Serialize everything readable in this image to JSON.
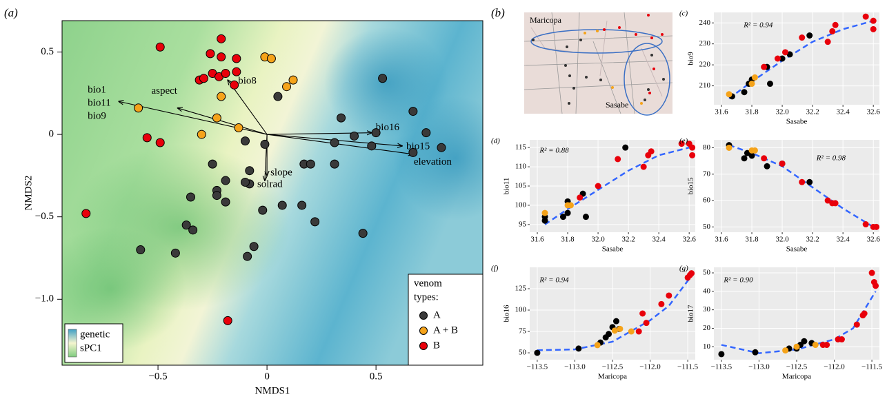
{
  "chart_data": [
    {
      "type": "scatter",
      "panel": "(a)",
      "xlabel": "NMDS1",
      "ylabel": "NMDS2",
      "xlim": [
        -0.94,
        0.99
      ],
      "ylim": [
        -1.4,
        0.69
      ],
      "xticks": [
        {
          "value": -0.5,
          "label": "−0.5"
        },
        0,
        0.5
      ],
      "yticks": [
        {
          "value": -1,
          "label": "−1.0"
        },
        {
          "value": -0.5,
          "label": "−0.5"
        },
        0,
        0.5
      ],
      "grid": false,
      "edgecolor": "#000000",
      "legend": "lower right",
      "legend_title": [
        "venom",
        "types:"
      ],
      "colorbar_labels": [
        "genetic",
        "sPC1"
      ],
      "series": [
        {
          "name": "A",
          "color": "#3a3a3a",
          "x": [
            0.53,
            0.05,
            0.67,
            0.34,
            0.73,
            0.4,
            0.5,
            0.8,
            0.67,
            0.48,
            0.31,
            -0.1,
            -0.01,
            0.31,
            0.17,
            0.2,
            -0.25,
            -0.19,
            -0.08,
            -0.08,
            -0.1,
            -0.23,
            -0.23,
            -0.19,
            -0.35,
            0.07,
            0.16,
            -0.02,
            0.22,
            -0.37,
            -0.34,
            0.44,
            -0.06,
            -0.58,
            -0.42,
            -0.09
          ],
          "values": [
            0.34,
            0.23,
            0.14,
            0.1,
            0.01,
            -0.01,
            0.01,
            -0.08,
            -0.11,
            -0.07,
            -0.05,
            -0.04,
            -0.06,
            -0.18,
            -0.18,
            -0.18,
            -0.18,
            -0.28,
            -0.22,
            -0.3,
            -0.29,
            -0.34,
            -0.37,
            -0.41,
            -0.38,
            -0.43,
            -0.43,
            -0.46,
            -0.53,
            -0.55,
            -0.58,
            -0.6,
            -0.68,
            -0.7,
            -0.72,
            -0.74
          ]
        },
        {
          "name": "A + B",
          "color": "#f5a31a",
          "x": [
            -0.01,
            0.02,
            0.12,
            0.09,
            -0.21,
            -0.59,
            -0.23,
            -0.13,
            -0.3
          ],
          "values": [
            0.47,
            0.46,
            0.33,
            0.29,
            0.23,
            0.16,
            0.1,
            0.04,
            0.0
          ]
        },
        {
          "name": "B",
          "color": "#e8000b",
          "x": [
            -0.21,
            -0.49,
            -0.26,
            -0.21,
            -0.14,
            -0.25,
            -0.22,
            -0.19,
            -0.14,
            -0.31,
            -0.29,
            -0.15,
            -0.55,
            -0.49,
            -0.83,
            -0.18
          ],
          "values": [
            0.58,
            0.53,
            0.49,
            0.47,
            0.46,
            0.37,
            0.35,
            0.37,
            0.38,
            0.33,
            0.34,
            0.3,
            -0.02,
            -0.05,
            -0.48,
            -1.13
          ]
        }
      ],
      "vectors": [
        {
          "labels": [
            "bio1",
            "bio11",
            "bio9"
          ],
          "x": -0.68,
          "y": 0.2
        },
        {
          "labels": [
            "aspect"
          ],
          "x": -0.41,
          "y": 0.16
        },
        {
          "labels": [
            "bio8"
          ],
          "x": -0.18,
          "y": 0.33
        },
        {
          "labels": [
            "bio16"
          ],
          "x": 0.48,
          "y": 0.01
        },
        {
          "labels": [
            "bio15"
          ],
          "x": 0.62,
          "y": -0.07
        },
        {
          "labels": [
            "elevation"
          ],
          "x": 0.67,
          "y": -0.12
        },
        {
          "labels": [
            "slope"
          ],
          "x": 0.0,
          "y": -0.25
        },
        {
          "labels": [
            "solrad"
          ],
          "x": -0.01,
          "y": -0.28
        }
      ]
    },
    {
      "type": "scatter",
      "panel": "(c)",
      "xlabel": "Sasabe",
      "ylabel": "bio9",
      "annotation": "R² = 0.94",
      "xlim": [
        31.55,
        32.64
      ],
      "ylim": [
        201,
        245
      ],
      "xticks": [
        31.6,
        31.8,
        {
          "value": 32,
          "label": "32.0"
        },
        32.2,
        32.4,
        32.6
      ],
      "yticks": [
        210,
        220,
        230,
        240
      ],
      "grid": true,
      "series": [
        {
          "color": "#000000",
          "x": [
            31.67,
            31.75,
            31.78,
            31.8,
            31.9,
            31.92,
            32.0,
            32.05,
            32.18
          ],
          "values": [
            205,
            207,
            211,
            213,
            219,
            211,
            223,
            225,
            234
          ]
        },
        {
          "color": "#f5a31a",
          "x": [
            31.65,
            31.82,
            31.8
          ],
          "values": [
            206,
            214,
            211
          ]
        },
        {
          "color": "#e8000b",
          "x": [
            31.88,
            31.97,
            32.02,
            32.13,
            32.3,
            32.33,
            32.35,
            32.55,
            32.6,
            32.6
          ],
          "values": [
            219,
            223,
            226,
            233,
            231,
            236,
            239,
            243,
            241,
            237
          ]
        }
      ],
      "fit": {
        "color": "#3366ff",
        "x": [
          31.65,
          31.8,
          32.0,
          32.2,
          32.4,
          32.6
        ],
        "values": [
          204,
          212,
          222,
          231,
          237,
          241
        ]
      }
    },
    {
      "type": "scatter",
      "panel": "(d)",
      "xlabel": "Sasabe",
      "ylabel": "bio11",
      "annotation": "R² = 0.88",
      "xlim": [
        31.55,
        32.64
      ],
      "ylim": [
        93,
        117
      ],
      "xticks": [
        31.6,
        31.8,
        {
          "value": 32,
          "label": "32.0"
        },
        32.2,
        32.4,
        32.6
      ],
      "yticks": [
        95,
        100,
        105,
        110,
        115
      ],
      "grid": true,
      "series": [
        {
          "color": "#000000",
          "x": [
            31.65,
            31.65,
            31.77,
            31.8,
            31.8,
            31.9,
            31.92,
            32.18
          ],
          "values": [
            96,
            97,
            97,
            101,
            98,
            103,
            97,
            115
          ]
        },
        {
          "color": "#f5a31a",
          "x": [
            31.65,
            31.8,
            31.82
          ],
          "values": [
            98,
            100,
            100
          ]
        },
        {
          "color": "#e8000b",
          "x": [
            31.88,
            32.0,
            32.13,
            32.3,
            32.33,
            32.35,
            32.55,
            32.6,
            32.62,
            32.62
          ],
          "values": [
            102,
            105,
            112,
            110,
            113,
            114,
            116,
            116,
            115,
            113
          ]
        }
      ],
      "fit": {
        "color": "#3366ff",
        "x": [
          31.65,
          31.8,
          32.0,
          32.2,
          32.4,
          32.6
        ],
        "values": [
          95,
          99,
          104,
          109,
          113,
          115
        ]
      }
    },
    {
      "type": "scatter",
      "panel": "(e)",
      "xlabel": "Sasabe",
      "ylabel": "bio15",
      "annotation": "R² = 0.98",
      "xlim": [
        31.55,
        32.64
      ],
      "ylim": [
        48,
        83
      ],
      "xticks": [
        31.6,
        31.8,
        {
          "value": 32,
          "label": "32.0"
        },
        32.2,
        32.4,
        32.6
      ],
      "yticks": [
        50,
        60,
        70,
        80
      ],
      "grid": true,
      "series": [
        {
          "color": "#000000",
          "x": [
            31.65,
            31.75,
            31.77,
            31.8,
            31.9,
            32.0,
            32.18
          ],
          "values": [
            81,
            76,
            78,
            77,
            73,
            74,
            67
          ]
        },
        {
          "color": "#f5a31a",
          "x": [
            31.65,
            31.8,
            31.82
          ],
          "values": [
            80,
            79,
            79
          ]
        },
        {
          "color": "#e8000b",
          "x": [
            31.88,
            32.0,
            32.13,
            32.3,
            32.33,
            32.35,
            32.55,
            32.6,
            32.62
          ],
          "values": [
            76,
            74,
            67,
            60,
            59,
            59,
            51,
            50,
            50
          ]
        }
      ],
      "fit": {
        "color": "#3366ff",
        "x": [
          31.65,
          31.8,
          32.0,
          32.2,
          32.4,
          32.6
        ],
        "values": [
          81,
          78,
          73,
          65,
          57,
          50
        ]
      }
    },
    {
      "type": "scatter",
      "panel": "(f)",
      "xlabel": "Maricopa",
      "ylabel": "bio16",
      "annotation": "R² = 0.94",
      "xlim": [
        -113.6,
        -111.4
      ],
      "ylim": [
        42,
        150
      ],
      "xticks": [
        {
          "value": -113.5,
          "label": "−113.5"
        },
        {
          "value": -113,
          "label": "−113.0"
        },
        {
          "value": -112.5,
          "label": "−112.5"
        },
        {
          "value": -112,
          "label": "−112.0"
        },
        {
          "value": -111.5,
          "label": "−111.5"
        }
      ],
      "yticks": [
        50,
        75,
        100,
        125
      ],
      "grid": true,
      "series": [
        {
          "color": "#000000",
          "x": [
            -113.5,
            -112.95,
            -112.66,
            -112.59,
            -112.55,
            -112.5,
            -112.45,
            -112.41
          ],
          "values": [
            50,
            55,
            62,
            68,
            72,
            80,
            87,
            78
          ]
        },
        {
          "color": "#f5a31a",
          "x": [
            -112.7,
            -112.47,
            -112.4,
            -112.25
          ],
          "values": [
            59,
            76,
            78,
            75
          ]
        },
        {
          "color": "#e8000b",
          "x": [
            -112.15,
            -112.1,
            -112.05,
            -111.85,
            -111.75,
            -111.5,
            -111.47,
            -111.45
          ],
          "values": [
            75,
            96,
            85,
            107,
            117,
            138,
            141,
            143
          ]
        }
      ],
      "fit": {
        "color": "#3366ff",
        "x": [
          -113.5,
          -113.0,
          -112.5,
          -112.0,
          -111.75,
          -111.45
        ],
        "values": [
          53,
          54,
          63,
          88,
          105,
          140
        ]
      }
    },
    {
      "type": "scatter",
      "panel": "(g)",
      "xlabel": "Maricopa",
      "ylabel": "bio17",
      "annotation": "R² = 0.90",
      "xlim": [
        -113.6,
        -111.4
      ],
      "ylim": [
        3,
        53
      ],
      "xticks": [
        {
          "value": -113.5,
          "label": "−113.5"
        },
        {
          "value": -113,
          "label": "−113.0"
        },
        {
          "value": -112.5,
          "label": "−112.5"
        },
        {
          "value": -112,
          "label": "−112.0"
        },
        {
          "value": -111.5,
          "label": "−111.5"
        }
      ],
      "yticks": [
        10,
        20,
        30,
        40,
        50
      ],
      "grid": true,
      "series": [
        {
          "color": "#000000",
          "x": [
            -113.5,
            -113.05,
            -112.6,
            -112.5,
            -112.45,
            -112.4,
            -112.3
          ],
          "values": [
            6,
            7,
            9,
            9,
            11,
            13,
            12
          ]
        },
        {
          "color": "#f5a31a",
          "x": [
            -112.65,
            -112.5,
            -112.25
          ],
          "values": [
            8,
            10,
            11
          ]
        },
        {
          "color": "#e8000b",
          "x": [
            -112.15,
            -112.1,
            -111.95,
            -111.9,
            -111.7,
            -111.62,
            -111.6,
            -111.5,
            -111.47,
            -111.45
          ],
          "values": [
            11,
            11,
            14,
            14,
            22,
            27,
            28,
            50,
            45,
            43
          ]
        }
      ],
      "fit": {
        "color": "#3366ff",
        "x": [
          -113.5,
          -113.0,
          -112.5,
          -112.0,
          -111.75,
          -111.45
        ],
        "values": [
          11,
          6.5,
          8.5,
          14,
          20,
          40
        ]
      }
    }
  ],
  "map_panel": {
    "panel": "(b)",
    "places": [
      "Maricopa",
      "Sasabe"
    ]
  }
}
